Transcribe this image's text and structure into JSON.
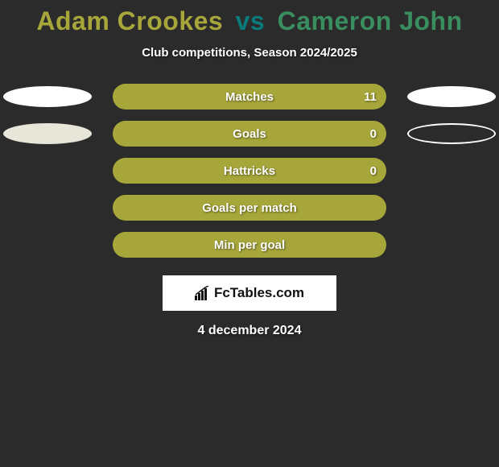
{
  "title": {
    "player1": "Adam Crookes",
    "vs": "vs",
    "player2": "Cameron John",
    "player1_color": "#a7a63a",
    "vs_color": "#0a7a7a",
    "player2_color": "#3a8d5f"
  },
  "subtitle": "Club competitions, Season 2024/2025",
  "rows": [
    {
      "label": "Matches",
      "bar_color": "#a7a63a",
      "value_right": "11",
      "left_ellipse": true,
      "left_fill": "#ffffff",
      "left_border": "#ffffff",
      "right_ellipse": true,
      "right_fill": "#ffffff",
      "right_border": "#ffffff"
    },
    {
      "label": "Goals",
      "bar_color": "#a7a63a",
      "value_right": "0",
      "left_ellipse": true,
      "left_fill": "#e8e6d8",
      "left_border": "#e8e6d8",
      "right_ellipse": true,
      "right_fill": "transparent",
      "right_border": "#ffffff"
    },
    {
      "label": "Hattricks",
      "bar_color": "#a7a63a",
      "value_right": "0",
      "left_ellipse": false,
      "right_ellipse": false
    },
    {
      "label": "Goals per match",
      "bar_color": "#a7a63a",
      "value_right": "",
      "left_ellipse": false,
      "right_ellipse": false
    },
    {
      "label": "Min per goal",
      "bar_color": "#a7a63a",
      "value_right": "",
      "left_ellipse": false,
      "right_ellipse": false
    }
  ],
  "logo": {
    "text": "FcTables.com",
    "icon_color": "#111111",
    "bg": "#ffffff"
  },
  "date": "4 december 2024",
  "background_color": "#2b2b2b"
}
